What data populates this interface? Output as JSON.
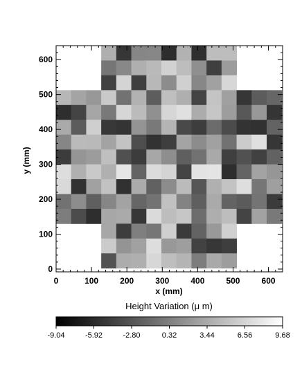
{
  "chart_data": {
    "type": "heatmap",
    "xlabel": "x (mm)",
    "ylabel": "y (mm)",
    "xlim": [
      0,
      640
    ],
    "ylim": [
      -8,
      640
    ],
    "x_ticks": [
      0,
      100,
      200,
      300,
      400,
      500,
      600
    ],
    "y_ticks": [
      0,
      100,
      200,
      300,
      400,
      500,
      600
    ],
    "grid": false,
    "cell_size_mm": 42.5,
    "map_rows": [
      "...XXXXXXXXX...",
      "...XXXXXXXXX...",
      "...XXXXXXXXX...",
      "XXXXXXXXXXXXXXX",
      "XXXXXXXXXXXXXXX",
      "XXXXXXXXXXXXXXX",
      "XXXXXXXXXXXXXXX",
      "XXXXXXXXXXXXXXX",
      "XXXXXXXXXXXXXXX",
      "XXXXXXXXXXXXXXX",
      "XXXXXXXXXXXXXXX",
      "XXXXXXXXXXXXXXX",
      "...XXXXXXXXX...",
      "...XXXXXXXXX...",
      "...XXXXXXXXX..."
    ],
    "colormap": "grayscale (black = low, white = high)",
    "colorbar": {
      "title": "Height Variation (μ m)",
      "min": -9.04,
      "max": 9.68,
      "tick_labels": [
        "-9.04",
        "-5.92",
        "-2.80",
        "0.32",
        "3.44",
        "6.56",
        "9.68"
      ]
    }
  }
}
